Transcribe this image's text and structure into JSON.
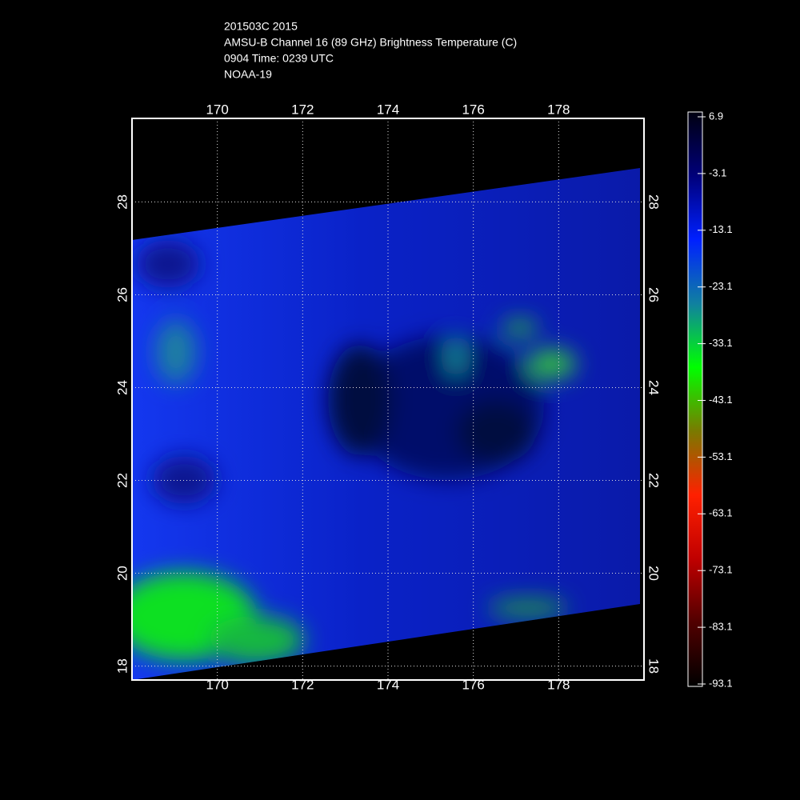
{
  "header": {
    "lines": [
      "201503C 2015",
      "AMSU-B Channel 16 (89 GHz) Brightness Temperature (C)",
      "0904 Time: 0239 UTC",
      "NOAA-19"
    ]
  },
  "map": {
    "xlim": [
      168,
      180
    ],
    "ylim": [
      17.7,
      29.8
    ],
    "xticks": [
      170,
      172,
      174,
      176,
      178
    ],
    "yticks": [
      18,
      20,
      22,
      24,
      26,
      28
    ],
    "grid": true
  },
  "colorbar": {
    "clim": [
      -93.1,
      6.9
    ],
    "ticks": [
      6.9,
      -3.1,
      -13.1,
      -23.1,
      -33.1,
      -43.1,
      -53.1,
      -63.1,
      -73.1,
      -83.1,
      -93.1
    ],
    "colors": [
      "#000010",
      "#00007a",
      "#0020ff",
      "#1080a0",
      "#00ff00",
      "#7a7a00",
      "#ff2000",
      "#c00000",
      "#500000",
      "#000000"
    ]
  }
}
